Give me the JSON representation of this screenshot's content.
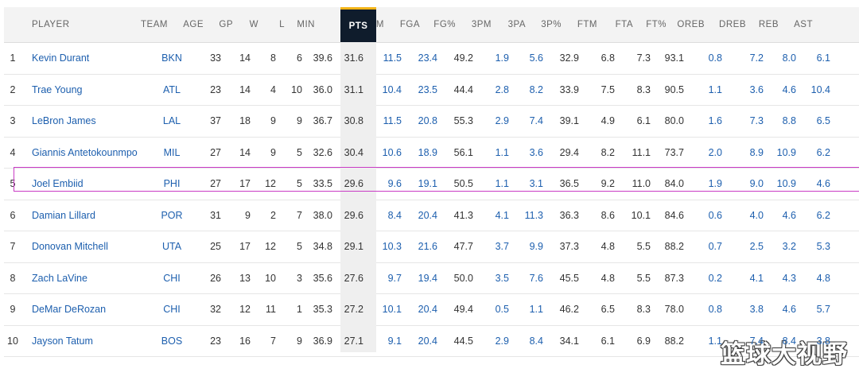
{
  "columns": {
    "player": "PLAYER",
    "team": "TEAM",
    "age": "AGE",
    "gp": "GP",
    "w": "W",
    "l": "L",
    "min": "MIN",
    "pts": "PTS",
    "fgm": "FGM",
    "fga": "FGA",
    "fgp": "FG%",
    "tpm": "3PM",
    "tpa": "3PA",
    "tpp": "3P%",
    "ftm": "FTM",
    "fta": "FTA",
    "ftp": "FT%",
    "oreb": "OREB",
    "dreb": "DREB",
    "reb": "REB",
    "ast": "AST"
  },
  "sorted_column": "PTS",
  "highlighted_row": 5,
  "colors": {
    "link": "#1d5fae",
    "sort_header_bg": "#0f1c2c",
    "sort_accent": "#f3b418",
    "highlight_border": "#c93bc5"
  },
  "rows": [
    {
      "rank": "1",
      "player": "Kevin Durant",
      "team": "BKN",
      "age": "33",
      "gp": "14",
      "w": "8",
      "l": "6",
      "min": "39.6",
      "pts": "31.6",
      "fgm": "11.5",
      "fga": "23.4",
      "fgp": "49.2",
      "tpm": "1.9",
      "tpa": "5.6",
      "tpp": "32.9",
      "ftm": "6.8",
      "fta": "7.3",
      "ftp": "93.1",
      "oreb": "0.8",
      "dreb": "7.2",
      "reb": "8.0",
      "ast": "6.1"
    },
    {
      "rank": "2",
      "player": "Trae Young",
      "team": "ATL",
      "age": "23",
      "gp": "14",
      "w": "4",
      "l": "10",
      "min": "36.0",
      "pts": "31.1",
      "fgm": "10.4",
      "fga": "23.5",
      "fgp": "44.4",
      "tpm": "2.8",
      "tpa": "8.2",
      "tpp": "33.9",
      "ftm": "7.5",
      "fta": "8.3",
      "ftp": "90.5",
      "oreb": "1.1",
      "dreb": "3.6",
      "reb": "4.6",
      "ast": "10.4"
    },
    {
      "rank": "3",
      "player": "LeBron James",
      "team": "LAL",
      "age": "37",
      "gp": "18",
      "w": "9",
      "l": "9",
      "min": "36.7",
      "pts": "30.8",
      "fgm": "11.5",
      "fga": "20.8",
      "fgp": "55.3",
      "tpm": "2.9",
      "tpa": "7.4",
      "tpp": "39.1",
      "ftm": "4.9",
      "fta": "6.1",
      "ftp": "80.0",
      "oreb": "1.6",
      "dreb": "7.3",
      "reb": "8.8",
      "ast": "6.5"
    },
    {
      "rank": "4",
      "player": "Giannis Antetokounmpo",
      "team": "MIL",
      "age": "27",
      "gp": "14",
      "w": "9",
      "l": "5",
      "min": "32.6",
      "pts": "30.4",
      "fgm": "10.6",
      "fga": "18.9",
      "fgp": "56.1",
      "tpm": "1.1",
      "tpa": "3.6",
      "tpp": "29.4",
      "ftm": "8.2",
      "fta": "11.1",
      "ftp": "73.7",
      "oreb": "2.0",
      "dreb": "8.9",
      "reb": "10.9",
      "ast": "6.2"
    },
    {
      "rank": "5",
      "player": "Joel Embiid",
      "team": "PHI",
      "age": "27",
      "gp": "17",
      "w": "12",
      "l": "5",
      "min": "33.5",
      "pts": "29.6",
      "fgm": "9.6",
      "fga": "19.1",
      "fgp": "50.5",
      "tpm": "1.1",
      "tpa": "3.1",
      "tpp": "36.5",
      "ftm": "9.2",
      "fta": "11.0",
      "ftp": "84.0",
      "oreb": "1.9",
      "dreb": "9.0",
      "reb": "10.9",
      "ast": "4.6"
    },
    {
      "rank": "6",
      "player": "Damian Lillard",
      "team": "POR",
      "age": "31",
      "gp": "9",
      "w": "2",
      "l": "7",
      "min": "38.0",
      "pts": "29.6",
      "fgm": "8.4",
      "fga": "20.4",
      "fgp": "41.3",
      "tpm": "4.1",
      "tpa": "11.3",
      "tpp": "36.3",
      "ftm": "8.6",
      "fta": "10.1",
      "ftp": "84.6",
      "oreb": "0.6",
      "dreb": "4.0",
      "reb": "4.6",
      "ast": "6.2"
    },
    {
      "rank": "7",
      "player": "Donovan Mitchell",
      "team": "UTA",
      "age": "25",
      "gp": "17",
      "w": "12",
      "l": "5",
      "min": "34.8",
      "pts": "29.1",
      "fgm": "10.3",
      "fga": "21.6",
      "fgp": "47.7",
      "tpm": "3.7",
      "tpa": "9.9",
      "tpp": "37.3",
      "ftm": "4.8",
      "fta": "5.5",
      "ftp": "88.2",
      "oreb": "0.7",
      "dreb": "2.5",
      "reb": "3.2",
      "ast": "5.3"
    },
    {
      "rank": "8",
      "player": "Zach LaVine",
      "team": "CHI",
      "age": "26",
      "gp": "13",
      "w": "10",
      "l": "3",
      "min": "35.6",
      "pts": "27.6",
      "fgm": "9.7",
      "fga": "19.4",
      "fgp": "50.0",
      "tpm": "3.5",
      "tpa": "7.6",
      "tpp": "45.5",
      "ftm": "4.8",
      "fta": "5.5",
      "ftp": "87.3",
      "oreb": "0.2",
      "dreb": "4.1",
      "reb": "4.3",
      "ast": "4.8"
    },
    {
      "rank": "9",
      "player": "DeMar DeRozan",
      "team": "CHI",
      "age": "32",
      "gp": "12",
      "w": "11",
      "l": "1",
      "min": "35.3",
      "pts": "27.2",
      "fgm": "10.1",
      "fga": "20.4",
      "fgp": "49.4",
      "tpm": "0.5",
      "tpa": "1.1",
      "tpp": "46.2",
      "ftm": "6.5",
      "fta": "8.3",
      "ftp": "78.0",
      "oreb": "0.8",
      "dreb": "3.8",
      "reb": "4.6",
      "ast": "5.7"
    },
    {
      "rank": "10",
      "player": "Jayson Tatum",
      "team": "BOS",
      "age": "23",
      "gp": "16",
      "w": "7",
      "l": "9",
      "min": "36.9",
      "pts": "27.1",
      "fgm": "9.1",
      "fga": "20.4",
      "fgp": "44.5",
      "tpm": "2.9",
      "tpa": "8.4",
      "tpp": "34.1",
      "ftm": "6.1",
      "fta": "6.9",
      "ftp": "88.2",
      "oreb": "1.1",
      "dreb": "7.4",
      "reb": "8.4",
      "ast": "3.8"
    }
  ],
  "watermark": "篮球大视野"
}
